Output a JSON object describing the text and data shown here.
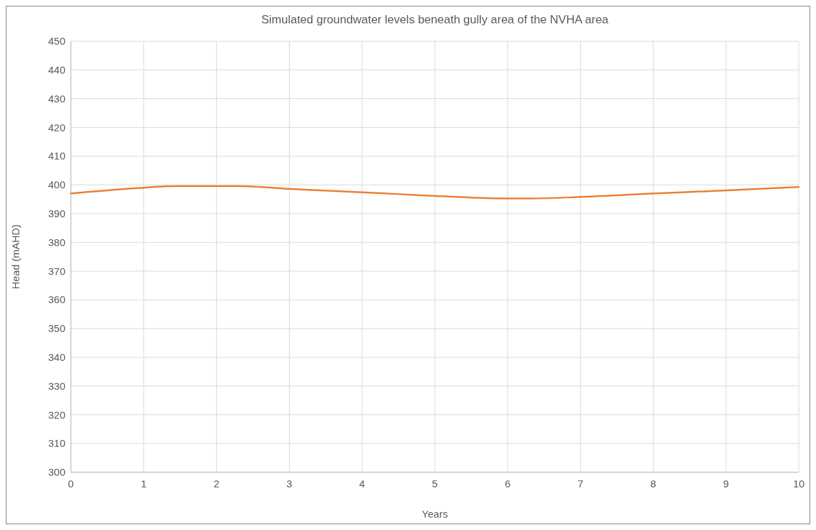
{
  "chart_data": {
    "type": "line",
    "title": "Simulated groundwater levels beneath gully area of the NVHA area",
    "xlabel": "Years",
    "ylabel": "Head (mAHD)",
    "x": [
      0,
      0.25,
      0.5,
      0.75,
      1,
      1.3,
      1.6,
      2,
      2.3,
      2.6,
      3,
      3.5,
      4,
      4.5,
      5,
      5.5,
      6,
      6.3,
      7,
      8,
      9,
      10
    ],
    "series": [
      {
        "color": "#ed7d31",
        "values": [
          397.0,
          397.6,
          398.1,
          398.6,
          399.0,
          399.5,
          399.6,
          399.6,
          399.6,
          399.3,
          398.6,
          398.0,
          397.4,
          396.8,
          396.2,
          395.6,
          395.3,
          395.3,
          395.8,
          397.0,
          398.1,
          399.3
        ]
      }
    ],
    "xlim": [
      0,
      10
    ],
    "xticks": [
      0,
      1,
      2,
      3,
      4,
      5,
      6,
      7,
      8,
      9,
      10
    ],
    "ylim": [
      300,
      450
    ],
    "yticks": [
      300,
      310,
      320,
      330,
      340,
      350,
      360,
      370,
      380,
      390,
      400,
      410,
      420,
      430,
      440,
      450
    ],
    "grid": true,
    "marker": "none",
    "line_style": "solid"
  }
}
